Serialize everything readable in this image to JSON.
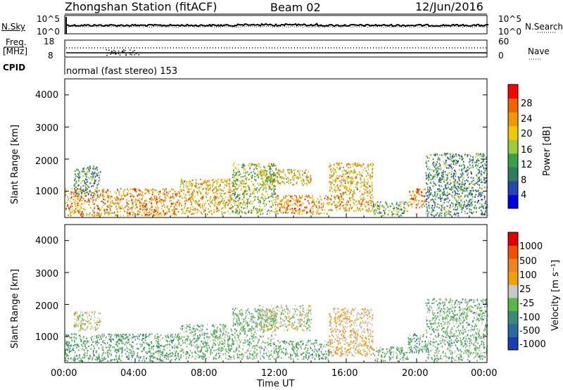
{
  "header": {
    "station": "Zhongshan Station (fitACF)",
    "beam": "Beam 02",
    "date": "12/Jun/2016"
  },
  "top_panels": {
    "nsky_label": "N.Sky",
    "nsearch_label": "N.Search",
    "nsky_ticks": [
      "10^5",
      "10^0"
    ],
    "nsearch_ticks": [
      "10^5",
      "10^0"
    ],
    "freq_label": "Freq.",
    "freq_unit": "[MHz]",
    "freq_ticks": [
      "18",
      "8"
    ],
    "nave_label": "Nave",
    "nave_ticks": [
      "60",
      "0"
    ],
    "cpid_label": "CPID",
    "cpid_value": "normal (fast stereo) 153"
  },
  "power_panel": {
    "ylabel": "Slant Range [km]",
    "yticks": [
      "4000",
      "3000",
      "2000",
      "1000"
    ],
    "colorbar_label": "Power [dB]",
    "colorbar_ticks": [
      "28",
      "24",
      "20",
      "16",
      "12",
      "8",
      "4"
    ],
    "colors": [
      "#0000e6",
      "#2446b4",
      "#2e7d5e",
      "#3a9e4a",
      "#9ccc3a",
      "#f0c800",
      "#f09800",
      "#f06400",
      "#ff0000"
    ]
  },
  "velocity_panel": {
    "ylabel": "Slant Range [km]",
    "yticks": [
      "4000",
      "3000",
      "2000",
      "1000"
    ],
    "colorbar_label": "Velocity [m s⁻¹]",
    "colorbar_ticks": [
      "1000",
      "500",
      "100",
      "25",
      "-25",
      "-100",
      "-500",
      "-1000"
    ],
    "colors": [
      "#1a3cb4",
      "#2a6aa0",
      "#3a8c78",
      "#58b848",
      "#c8c8c8",
      "#f0a000",
      "#f08020",
      "#f05000",
      "#e00000"
    ]
  },
  "xaxis": {
    "label": "Time UT",
    "ticks": [
      "00:00",
      "04:00",
      "08:00",
      "12:00",
      "16:00",
      "20:00",
      "00:00"
    ]
  },
  "chart_data": {
    "type": "heatmap",
    "title": "Zhongshan Station (fitACF)",
    "xlabel": "Time UT",
    "ylabel": "Slant Range [km]",
    "xlim": [
      "00:00",
      "24:00"
    ],
    "ylim": [
      180,
      4500
    ],
    "x_ticks": [
      "00:00",
      "04:00",
      "08:00",
      "12:00",
      "16:00",
      "20:00",
      "00:00"
    ],
    "y_ticks": [
      1000,
      2000,
      3000,
      4000
    ],
    "series": [
      {
        "name": "Power [dB]",
        "color_range": [
          0,
          30
        ],
        "scatter_regions": [
          {
            "t_start": 0.0,
            "t_end": 6.5,
            "r_start": 250,
            "r_end": 1100,
            "value": 22
          },
          {
            "t_start": 0.5,
            "t_end": 2.0,
            "r_start": 900,
            "r_end": 1800,
            "value": 10
          },
          {
            "t_start": 6.5,
            "t_end": 9.5,
            "r_start": 300,
            "r_end": 1400,
            "value": 20
          },
          {
            "t_start": 9.5,
            "t_end": 12.0,
            "r_start": 300,
            "r_end": 1900,
            "value": 14
          },
          {
            "t_start": 11.0,
            "t_end": 14.0,
            "r_start": 1200,
            "r_end": 1700,
            "value": 18
          },
          {
            "t_start": 12.0,
            "t_end": 15.0,
            "r_start": 300,
            "r_end": 900,
            "value": 22
          },
          {
            "t_start": 15.0,
            "t_end": 17.5,
            "r_start": 400,
            "r_end": 1900,
            "value": 20
          },
          {
            "t_start": 17.5,
            "t_end": 19.5,
            "r_start": 250,
            "r_end": 700,
            "value": 12
          },
          {
            "t_start": 19.5,
            "t_end": 20.5,
            "r_start": 500,
            "r_end": 1100,
            "value": 22
          },
          {
            "t_start": 20.5,
            "t_end": 24.0,
            "r_start": 250,
            "r_end": 2200,
            "value": 10
          }
        ]
      },
      {
        "name": "Velocity [m s⁻¹]",
        "color_range": [
          -1000,
          1000
        ],
        "scatter_regions": [
          {
            "t_start": 0.0,
            "t_end": 6.5,
            "r_start": 250,
            "r_end": 1100,
            "value": -300
          },
          {
            "t_start": 0.5,
            "t_end": 2.0,
            "r_start": 1200,
            "r_end": 1800,
            "value": 0
          },
          {
            "t_start": 6.5,
            "t_end": 9.5,
            "r_start": 300,
            "r_end": 1400,
            "value": -200
          },
          {
            "t_start": 9.5,
            "t_end": 12.0,
            "r_start": 300,
            "r_end": 1900,
            "value": -150
          },
          {
            "t_start": 11.0,
            "t_end": 14.0,
            "r_start": 1200,
            "r_end": 2000,
            "value": 0
          },
          {
            "t_start": 12.0,
            "t_end": 15.0,
            "r_start": 300,
            "r_end": 900,
            "value": -300
          },
          {
            "t_start": 15.0,
            "t_end": 17.5,
            "r_start": 400,
            "r_end": 1900,
            "value": 150
          },
          {
            "t_start": 17.5,
            "t_end": 19.5,
            "r_start": 250,
            "r_end": 700,
            "value": -200
          },
          {
            "t_start": 19.5,
            "t_end": 20.5,
            "r_start": 500,
            "r_end": 1100,
            "value": -300
          },
          {
            "t_start": 20.5,
            "t_end": 24.0,
            "r_start": 250,
            "r_end": 2200,
            "value": -200
          }
        ]
      }
    ],
    "legend": "right colorbars"
  }
}
